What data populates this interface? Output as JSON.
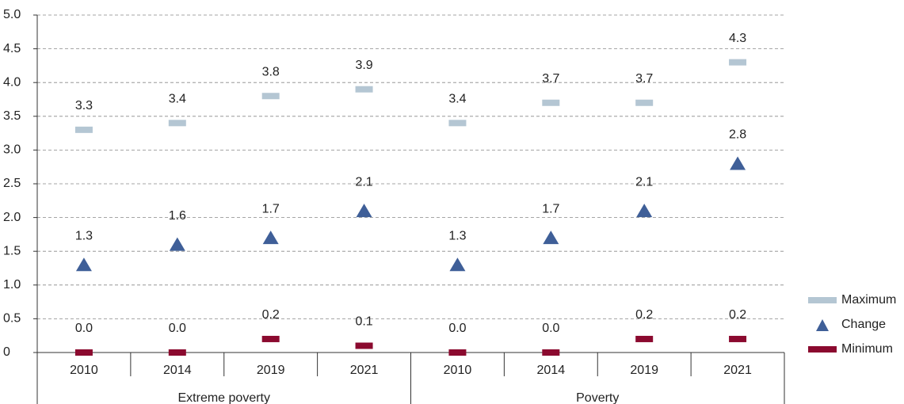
{
  "chart_data": {
    "type": "scatter",
    "categories": [
      "2010",
      "2014",
      "2019",
      "2021",
      "2010",
      "2014",
      "2019",
      "2021"
    ],
    "groups": [
      "Extreme poverty",
      "Poverty"
    ],
    "series": [
      {
        "name": "Maximum",
        "color": "#b4c6d3",
        "marker": "dash",
        "values": [
          3.3,
          3.4,
          3.8,
          3.9,
          3.4,
          3.7,
          3.7,
          4.3
        ]
      },
      {
        "name": "Change",
        "color": "#3f5f98",
        "marker": "triangle",
        "values": [
          1.3,
          1.6,
          1.7,
          2.1,
          1.3,
          1.7,
          2.1,
          2.8
        ]
      },
      {
        "name": "Minimum",
        "color": "#8b0a2f",
        "marker": "dash",
        "values": [
          0,
          0,
          0.2,
          0.1,
          0,
          0,
          0.2,
          0.2
        ],
        "value_labels": [
          "0.0",
          "0.0",
          "0.2",
          "0.1",
          "0.0",
          "0.0",
          "0.2",
          "0.2"
        ]
      }
    ],
    "ylim": [
      0,
      5
    ],
    "yticks": [
      0,
      0.5,
      {
        "value": 1,
        "label": "1.0"
      },
      1.5,
      {
        "value": 2,
        "label": "2.0"
      },
      2.5,
      {
        "value": 3,
        "label": "3.0"
      },
      3.5,
      {
        "value": 4,
        "label": "4.0"
      },
      4.5,
      {
        "value": 5,
        "label": "5.0"
      }
    ],
    "grid": true,
    "legend": "right"
  }
}
